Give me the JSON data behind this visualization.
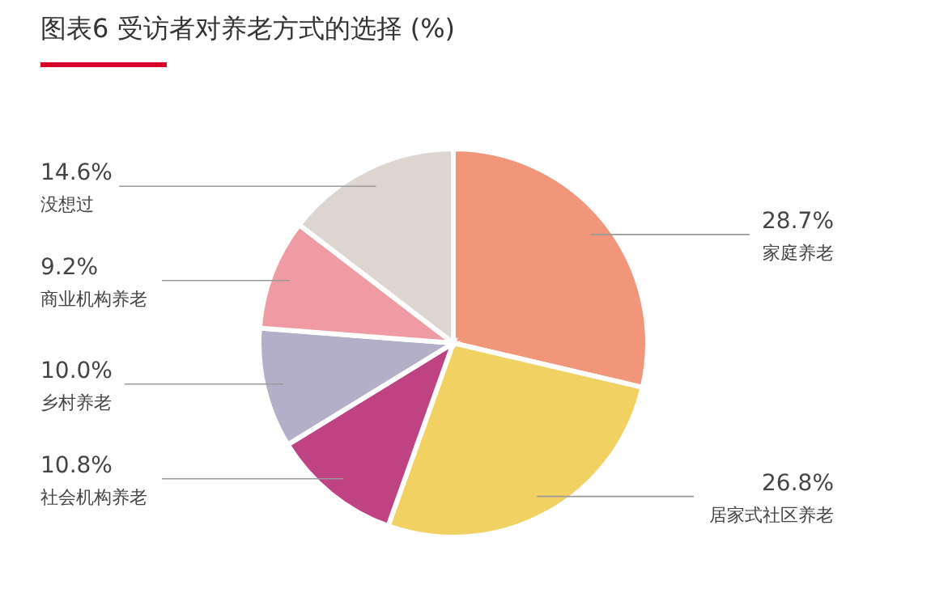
{
  "chart_data": {
    "type": "pie",
    "title": "图表6 受访者对养老方式的选择 (%)",
    "categories": [
      "家庭养老",
      "居家式社区养老",
      "社会机构养老",
      "乡村养老",
      "商业机构养老",
      "没想过"
    ],
    "values": [
      28.7,
      26.8,
      10.8,
      10.0,
      9.2,
      14.6
    ],
    "value_labels": [
      "28.7%",
      "26.8%",
      "10.8%",
      "10.0%",
      "9.2%",
      "14.6%"
    ],
    "colors": [
      "#f19679",
      "#f1d162",
      "#bf4282",
      "#b4afc9",
      "#f09ba3",
      "#ddd5d0"
    ]
  }
}
